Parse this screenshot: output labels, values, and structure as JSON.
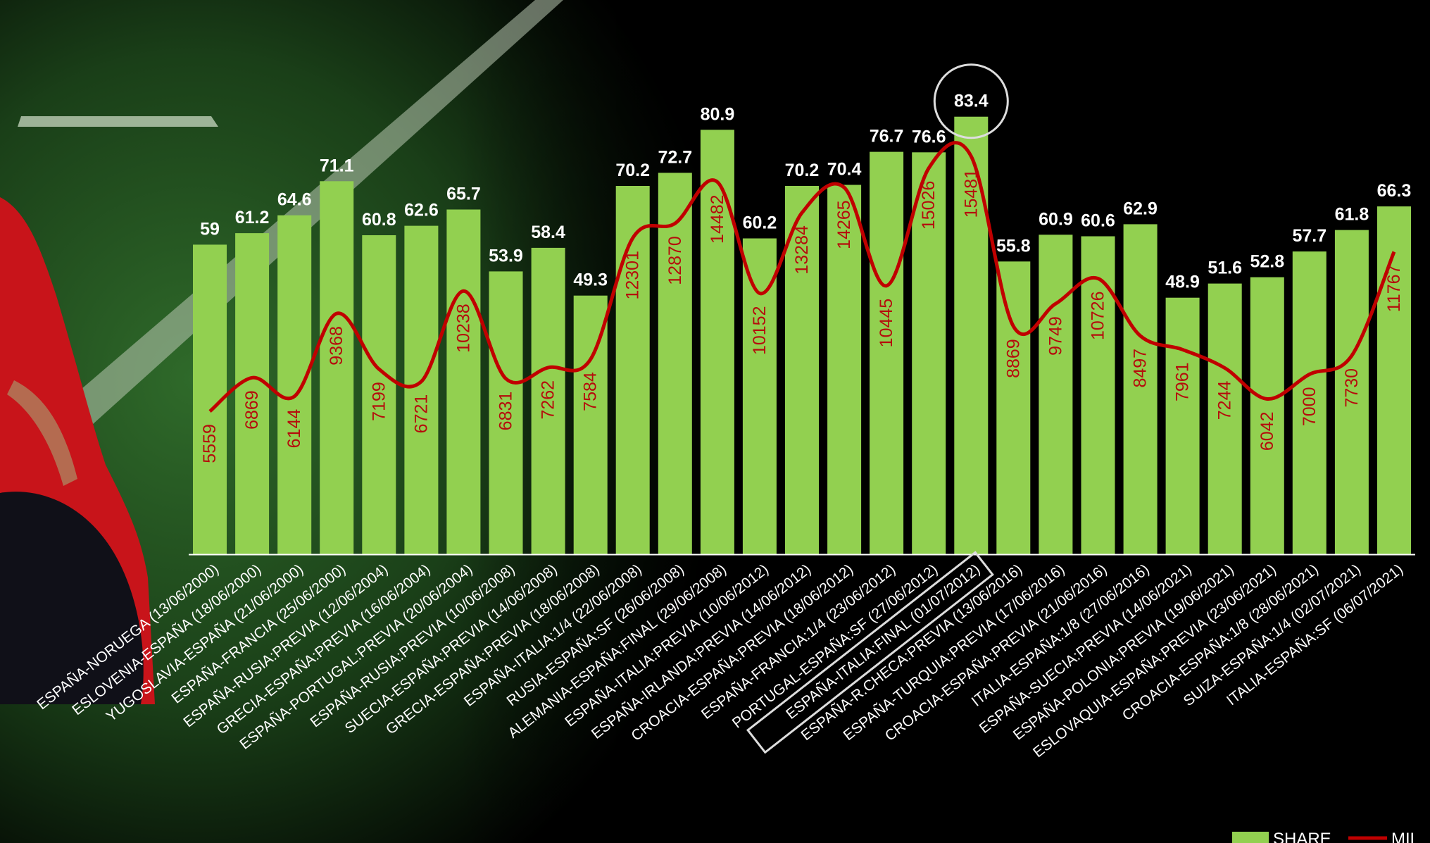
{
  "colors": {
    "bar": "#92d050",
    "line": "#c00000",
    "line_label": "#b50c0c",
    "value_label": "#ffffff",
    "axis": "#ffffff",
    "highlight": "#dddddd"
  },
  "chart_data": {
    "type": "bar",
    "title": "",
    "xlabel": "",
    "ylabel": "",
    "ylim": [
      0,
      100
    ],
    "y2lim": [
      0,
      20000
    ],
    "grid": false,
    "legend_position": "bottom-right",
    "categories": [
      "ESPAÑA-NORUEGA (13/06/2000)",
      "ESLOVENIA-ESPAÑA (18/06/2000)",
      "YUGOSLAVIA-ESPAÑA (21/06/2000)",
      "ESPAÑA-FRANCIA (25/06/2000)",
      "ESPAÑA-RUSIA:PREVIA (12/06/2004)",
      "GRECIA-ESPAÑA:PREVIA (16/06/2004)",
      "ESPAÑA-PORTUGAL:PREVIA (20/06/2004)",
      "ESPAÑA-RUSIA:PREVIA (10/06/2008)",
      "SUECIA-ESPAÑA:PREVIA (14/06/2008)",
      "GRECIA-ESPAÑA:PREVIA (18/06/2008)",
      "ESPAÑA-ITALIA:1/4 (22/06/2008)",
      "RUSIA-ESPAÑA:SF (26/06/2008)",
      "ALEMANIA-ESPAÑA:FINAL (29/06/2008)",
      "ESPAÑA-ITALIA:PREVIA (10/06/2012)",
      "ESPAÑA-IRLANDA:PREVIA (14/06/2012)",
      "CROACIA-ESPAÑA:PREVIA (18/06/2012)",
      "ESPAÑA-FRANCIA:1/4 (23/06/2012)",
      "PORTUGAL-ESPAÑA:SF (27/06/2012)",
      "ESPAÑA-ITALIA:FINAL (01/07/2012)",
      "ESPAÑA-R.CHECA:PREVIA (13/06/2016)",
      "ESPAÑA-TURQUIA:PREVIA (17/06/2016)",
      "CROACIA-ESPAÑA:PREVIA (21/06/2016)",
      "ITALIA-ESPAÑA:1/8 (27/06/2016)",
      "ESPAÑA-SUECIA:PREVIA (14/06/2021)",
      "ESPAÑA-POLONIA:PREVIA (19/06/2021)",
      "ESLOVAQUIA-ESPAÑA:PREVIA (23/06/2021)",
      "CROACIA-ESPAÑA:1/8 (28/06/2021)",
      "SUIZA-ESPAÑA:1/4 (02/07/2021)",
      "ITALIA-ESPAÑA:SF (06/07/2021)"
    ],
    "series": [
      {
        "name": "SHARE",
        "type": "bar",
        "values": [
          59,
          61.2,
          64.6,
          71.1,
          60.8,
          62.6,
          65.7,
          53.9,
          58.4,
          49.3,
          70.2,
          72.7,
          80.9,
          60.2,
          70.2,
          70.4,
          76.7,
          76.6,
          83.4,
          55.8,
          60.9,
          60.6,
          62.9,
          48.9,
          51.6,
          52.8,
          57.7,
          61.8,
          66.3
        ]
      },
      {
        "name": "MIL",
        "type": "line",
        "values": [
          5559,
          6869,
          6144,
          9368,
          7199,
          6721,
          10238,
          6831,
          7262,
          7584,
          12301,
          12870,
          14482,
          10152,
          13284,
          14265,
          10445,
          15026,
          15481,
          8869,
          9749,
          10726,
          8497,
          7961,
          7244,
          6042,
          7000,
          7730,
          11767
        ]
      }
    ],
    "highlight_index": 18,
    "legend": [
      {
        "label": "SHARE",
        "series": "bar"
      },
      {
        "label": "MIL",
        "series": "line"
      }
    ]
  }
}
